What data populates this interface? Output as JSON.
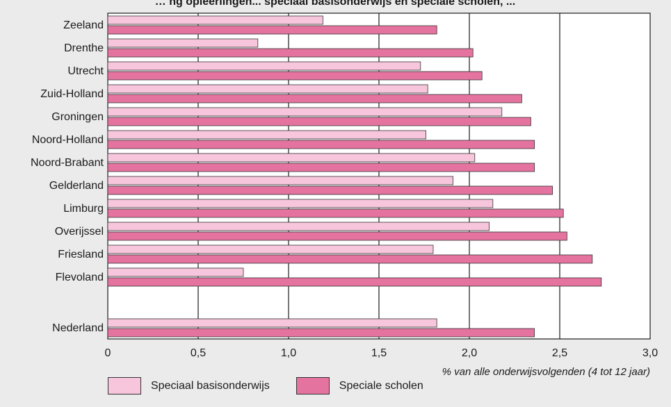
{
  "title": "… ng opleerlingen... speciaal basisonderwijs en speciale scholen, ...",
  "chart_data": {
    "type": "bar",
    "orientation": "horizontal",
    "categories": [
      "Zeeland",
      "Drenthe",
      "Utrecht",
      "Zuid-Holland",
      "Groningen",
      "Noord-Holland",
      "Noord-Brabant",
      "Gelderland",
      "Limburg",
      "Overijssel",
      "Friesland",
      "Flevoland",
      "Nederland"
    ],
    "series": [
      {
        "name": "Speciaal basisonderwijs",
        "color": "#f7c6dc",
        "values": [
          1.19,
          0.83,
          1.73,
          1.77,
          2.18,
          1.76,
          2.03,
          1.91,
          2.13,
          2.11,
          1.8,
          0.75,
          1.82
        ]
      },
      {
        "name": "Speciale scholen",
        "color": "#e5739f",
        "values": [
          1.82,
          2.02,
          2.07,
          2.29,
          2.34,
          2.36,
          2.36,
          2.46,
          2.52,
          2.54,
          2.68,
          2.73,
          2.36
        ]
      }
    ],
    "xlim": [
      0,
      3.0
    ],
    "xticks": [
      "0",
      "0,5",
      "1,0",
      "1,5",
      "2,0",
      "2,5",
      "3,0"
    ],
    "xlabel": "% van alle onderwijsvolgenden (4 tot 12 jaar)",
    "ylabel": "",
    "grid": "vertical",
    "legend": "bottom"
  }
}
